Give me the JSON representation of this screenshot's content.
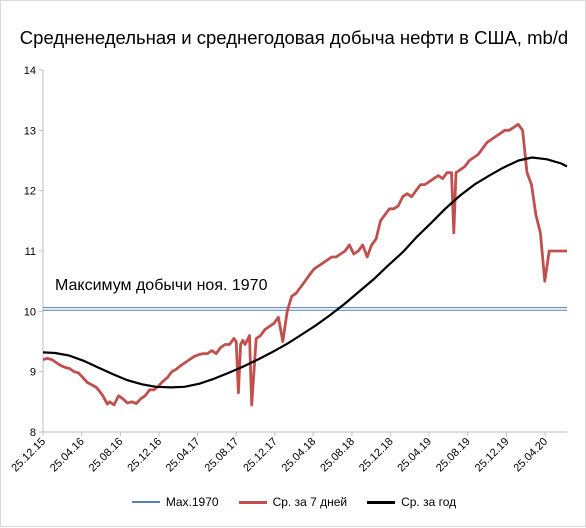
{
  "chart_data": {
    "type": "line",
    "title": "Средненедельная и среднегодовая добыча нефти в США, mb/d",
    "ylim": [
      8,
      14
    ],
    "yticks": [
      8,
      9,
      10,
      11,
      12,
      13,
      14
    ],
    "xlim": [
      "2015-12-25",
      "2020-07-03"
    ],
    "x_tick_labels": [
      "25.12.15",
      "25.04.16",
      "25.08.16",
      "25.12.16",
      "25.04.17",
      "25.08.17",
      "25.12.17",
      "25.04.18",
      "25.08.18",
      "25.12.18",
      "25.04.19",
      "25.08.19",
      "25.12.19",
      "25.04.20"
    ],
    "x_tick_dates": [
      "2015-12-25",
      "2016-04-25",
      "2016-08-25",
      "2016-12-25",
      "2017-04-25",
      "2017-08-25",
      "2017-12-25",
      "2018-04-25",
      "2018-08-25",
      "2018-12-25",
      "2019-04-25",
      "2019-08-25",
      "2019-12-25",
      "2020-04-25"
    ],
    "grid": false,
    "legend_position": "bottom",
    "annotations": [
      {
        "text": "Максимум добычи ноя. 1970"
      }
    ],
    "series": [
      {
        "name": "Max.1970",
        "color": "#4f81bd",
        "style": "double",
        "x": [
          "2015-12-25",
          "2020-07-03"
        ],
        "y": [
          10.04,
          10.04
        ]
      },
      {
        "name": "Ср. за 7 дней",
        "color": "#c0504d",
        "x": [
          "2015-12-25",
          "2016-01-08",
          "2016-01-22",
          "2016-02-05",
          "2016-02-19",
          "2016-03-04",
          "2016-03-18",
          "2016-04-01",
          "2016-04-15",
          "2016-04-29",
          "2016-05-13",
          "2016-05-27",
          "2016-06-10",
          "2016-06-17",
          "2016-07-01",
          "2016-07-15",
          "2016-07-22",
          "2016-08-05",
          "2016-08-19",
          "2016-09-02",
          "2016-09-16",
          "2016-09-30",
          "2016-10-14",
          "2016-10-28",
          "2016-11-11",
          "2016-11-25",
          "2016-12-09",
          "2016-12-23",
          "2017-01-06",
          "2017-01-20",
          "2017-02-03",
          "2017-02-17",
          "2017-03-03",
          "2017-03-17",
          "2017-03-31",
          "2017-04-14",
          "2017-04-28",
          "2017-05-12",
          "2017-05-26",
          "2017-06-09",
          "2017-06-23",
          "2017-07-07",
          "2017-07-21",
          "2017-08-04",
          "2017-08-18",
          "2017-08-25",
          "2017-09-01",
          "2017-09-08",
          "2017-09-15",
          "2017-09-22",
          "2017-10-06",
          "2017-10-13",
          "2017-10-27",
          "2017-11-10",
          "2017-11-24",
          "2017-12-08",
          "2017-12-22",
          "2018-01-05",
          "2018-01-19",
          "2018-02-02",
          "2018-02-16",
          "2018-03-02",
          "2018-03-16",
          "2018-03-30",
          "2018-04-13",
          "2018-04-27",
          "2018-05-11",
          "2018-05-25",
          "2018-06-08",
          "2018-06-22",
          "2018-07-06",
          "2018-07-20",
          "2018-08-03",
          "2018-08-17",
          "2018-08-31",
          "2018-09-14",
          "2018-09-28",
          "2018-10-12",
          "2018-10-26",
          "2018-11-09",
          "2018-11-23",
          "2018-12-07",
          "2018-12-21",
          "2019-01-04",
          "2019-01-18",
          "2019-02-01",
          "2019-02-15",
          "2019-03-01",
          "2019-03-15",
          "2019-03-29",
          "2019-04-12",
          "2019-04-26",
          "2019-05-10",
          "2019-05-24",
          "2019-06-07",
          "2019-06-21",
          "2019-07-05",
          "2019-07-12",
          "2019-07-19",
          "2019-08-02",
          "2019-08-16",
          "2019-08-30",
          "2019-09-13",
          "2019-09-27",
          "2019-10-11",
          "2019-10-25",
          "2019-11-08",
          "2019-11-22",
          "2019-12-06",
          "2019-12-20",
          "2020-01-03",
          "2020-01-17",
          "2020-01-31",
          "2020-02-14",
          "2020-02-28",
          "2020-03-13",
          "2020-03-27",
          "2020-04-10",
          "2020-04-24",
          "2020-05-08",
          "2020-05-22",
          "2020-06-05",
          "2020-06-19",
          "2020-07-03"
        ],
        "y": [
          9.2,
          9.22,
          9.2,
          9.15,
          9.1,
          9.07,
          9.05,
          9.0,
          8.98,
          8.9,
          8.82,
          8.78,
          8.74,
          8.7,
          8.6,
          8.46,
          8.5,
          8.45,
          8.6,
          8.55,
          8.48,
          8.5,
          8.47,
          8.55,
          8.6,
          8.7,
          8.7,
          8.76,
          8.84,
          8.9,
          9.0,
          9.04,
          9.1,
          9.15,
          9.2,
          9.25,
          9.28,
          9.3,
          9.3,
          9.35,
          9.3,
          9.4,
          9.45,
          9.45,
          9.55,
          9.5,
          8.65,
          9.45,
          9.52,
          9.45,
          9.6,
          8.45,
          9.55,
          9.6,
          9.7,
          9.75,
          9.8,
          9.9,
          9.5,
          10.0,
          10.25,
          10.3,
          10.4,
          10.5,
          10.6,
          10.7,
          10.75,
          10.8,
          10.85,
          10.9,
          10.9,
          10.95,
          11.0,
          11.1,
          10.95,
          11.0,
          11.1,
          10.9,
          11.1,
          11.2,
          11.5,
          11.6,
          11.7,
          11.7,
          11.75,
          11.9,
          11.95,
          11.9,
          12.0,
          12.1,
          12.1,
          12.15,
          12.2,
          12.25,
          12.2,
          12.3,
          12.3,
          11.3,
          12.3,
          12.35,
          12.4,
          12.5,
          12.55,
          12.6,
          12.7,
          12.8,
          12.85,
          12.9,
          12.95,
          13.0,
          13.0,
          13.05,
          13.1,
          13.0,
          12.3,
          12.1,
          11.6,
          11.3,
          10.5,
          11.0,
          11.0,
          11.0,
          11.0,
          11.0
        ]
      },
      {
        "name": "Ср. за год",
        "color": "#000000",
        "x": [
          "2015-12-25",
          "2016-02-01",
          "2016-03-15",
          "2016-05-01",
          "2016-06-15",
          "2016-08-01",
          "2016-09-15",
          "2016-11-01",
          "2016-12-15",
          "2017-02-01",
          "2017-03-15",
          "2017-05-01",
          "2017-06-15",
          "2017-08-01",
          "2017-09-15",
          "2017-11-01",
          "2017-12-15",
          "2018-02-01",
          "2018-03-15",
          "2018-05-01",
          "2018-06-15",
          "2018-08-01",
          "2018-09-15",
          "2018-11-01",
          "2018-12-15",
          "2019-02-01",
          "2019-03-15",
          "2019-05-01",
          "2019-06-15",
          "2019-08-01",
          "2019-09-15",
          "2019-11-01",
          "2019-12-15",
          "2020-02-01",
          "2020-03-15",
          "2020-05-01",
          "2020-06-15",
          "2020-07-03"
        ],
        "y": [
          9.32,
          9.31,
          9.27,
          9.18,
          9.07,
          8.96,
          8.86,
          8.79,
          8.75,
          8.74,
          8.75,
          8.8,
          8.88,
          8.98,
          9.08,
          9.2,
          9.32,
          9.46,
          9.6,
          9.76,
          9.93,
          10.12,
          10.32,
          10.53,
          10.75,
          10.98,
          11.22,
          11.46,
          11.7,
          11.92,
          12.1,
          12.25,
          12.38,
          12.5,
          12.55,
          12.52,
          12.45,
          12.4
        ]
      }
    ]
  }
}
